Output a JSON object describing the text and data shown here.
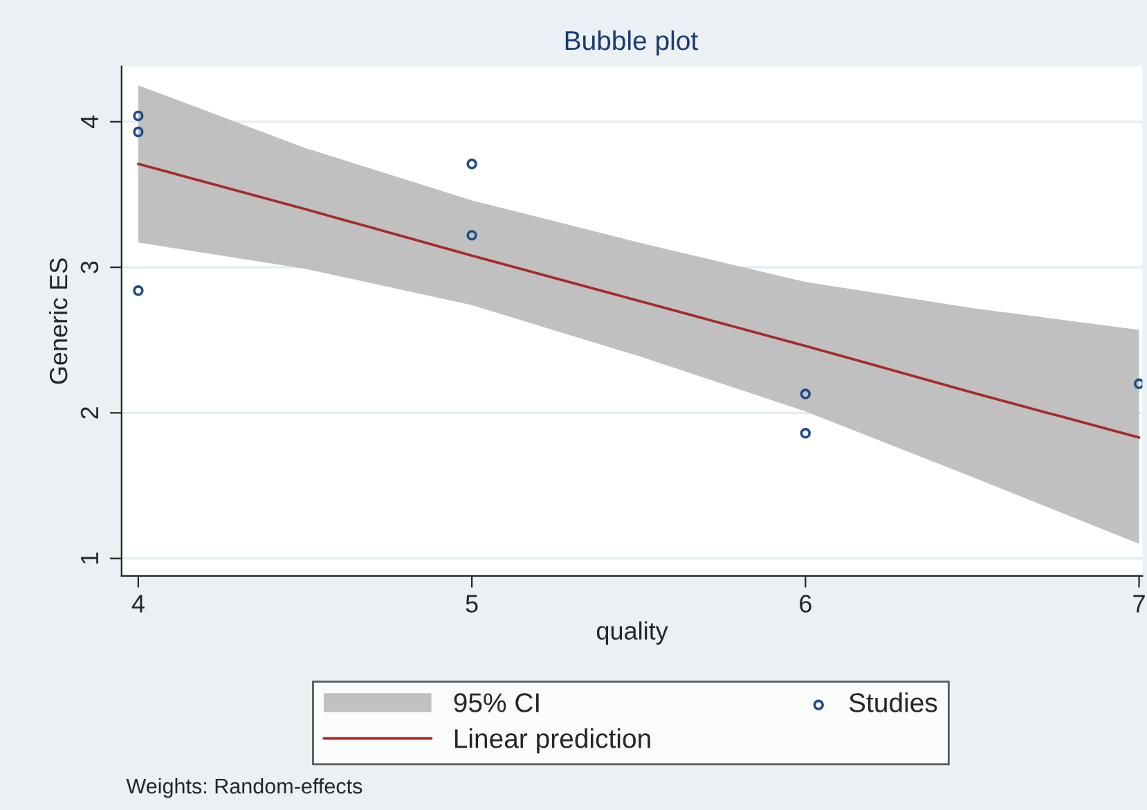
{
  "chart_data": {
    "type": "scatter",
    "title": "Bubble plot",
    "xlabel": "quality",
    "ylabel": "Generic ES",
    "xlim": [
      3.95,
      7.01
    ],
    "xticks": [
      4,
      5,
      6,
      7
    ],
    "ylim": [
      0.88,
      4.38
    ],
    "yticks": [
      1,
      2,
      3,
      4
    ],
    "grid": "y",
    "legend": "bottom",
    "series": [
      {
        "name": "Linear prediction",
        "type": "line",
        "color": "#a52a2a",
        "x": [
          4,
          4.5,
          5,
          5.5,
          6,
          6.5,
          7
        ],
        "values": [
          3.71,
          3.4,
          3.08,
          2.77,
          2.46,
          2.14,
          1.83
        ],
        "lower": [
          3.17,
          2.99,
          2.74,
          2.39,
          2.01,
          1.56,
          1.1
        ],
        "upper": [
          4.25,
          3.82,
          3.46,
          3.17,
          2.9,
          2.72,
          2.57
        ]
      },
      {
        "name": "Studies",
        "marker": "circle",
        "color": "#1f4e87",
        "x": [
          4,
          4,
          4,
          5,
          5,
          6,
          6,
          7
        ],
        "values": [
          4.04,
          3.93,
          2.84,
          3.71,
          3.22,
          2.13,
          1.86,
          2.2
        ]
      }
    ],
    "annotations": [
      "95% CI",
      "Weights: Random-effects"
    ]
  }
}
